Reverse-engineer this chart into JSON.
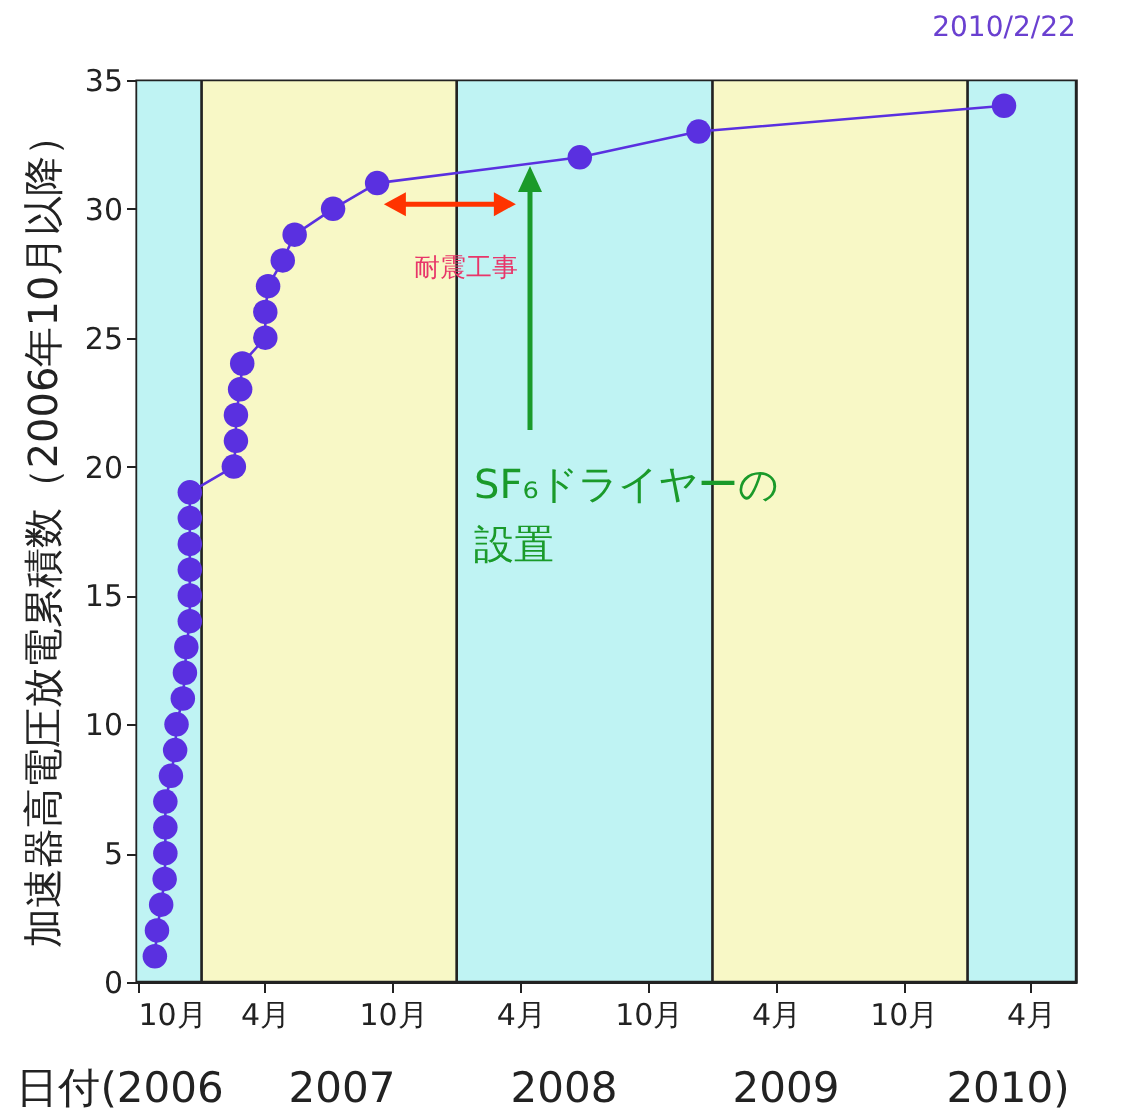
{
  "chart_data": {
    "type": "line",
    "ylabel": "加速器高電圧放電累積数（2006年10月以降）",
    "xlabel": "日付(2006 2007 2008 2009 2010)",
    "x": [
      "2006-10-26",
      "2006-10-29",
      "2006-11-04",
      "2006-11-09",
      "2006-11-10",
      "2006-11-10",
      "2006-11-10",
      "2006-11-18",
      "2006-11-24",
      "2006-11-26",
      "2006-12-05",
      "2006-12-08",
      "2006-12-10",
      "2006-12-15",
      "2006-12-15",
      "2006-12-15",
      "2006-12-15",
      "2006-12-15",
      "2006-12-15",
      "2007-02-16",
      "2007-02-19",
      "2007-02-19",
      "2007-02-25",
      "2007-02-28",
      "2007-04-02",
      "2007-04-02",
      "2007-04-06",
      "2007-04-27",
      "2007-05-14",
      "2007-07-08",
      "2007-09-09",
      "2008-06-25",
      "2008-12-12",
      "2010-02-22"
    ],
    "series": [
      {
        "color": "#5a30e0",
        "values": [
          1,
          2,
          3,
          4,
          5,
          6,
          7,
          8,
          9,
          10,
          11,
          12,
          13,
          14,
          15,
          16,
          17,
          18,
          19,
          20,
          21,
          22,
          23,
          24,
          25,
          26,
          27,
          28,
          29,
          30,
          31,
          32,
          33,
          34
        ]
      }
    ],
    "xlim": [
      "2006-09-29",
      "2010-06-05"
    ],
    "ylim": [
      0,
      35
    ],
    "yticks": [
      0,
      5,
      10,
      15,
      20,
      25,
      30,
      35
    ],
    "xticks": [
      {
        "value": "2006-10-01",
        "label": "10月"
      },
      {
        "value": "2007-04-01",
        "label": "4月"
      },
      {
        "value": "2007-10-01",
        "label": "10月"
      },
      {
        "value": "2008-04-01",
        "label": "4月"
      },
      {
        "value": "2008-10-01",
        "label": "10月"
      },
      {
        "value": "2009-04-01",
        "label": "4月"
      },
      {
        "value": "2009-10-01",
        "label": "10月"
      },
      {
        "value": "2010-04-01",
        "label": "4月"
      }
    ],
    "marker": "circle",
    "bands": [
      {
        "axis": "x",
        "from": "2006-09-29",
        "to": "2007-01-01",
        "color": "#bff3f3"
      },
      {
        "axis": "x",
        "from": "2007-01-01",
        "to": "2008-01-01",
        "color": "#f8f8c6"
      },
      {
        "axis": "x",
        "from": "2008-01-01",
        "to": "2009-01-01",
        "color": "#bff3f3"
      },
      {
        "axis": "x",
        "from": "2009-01-01",
        "to": "2010-01-01",
        "color": "#f8f8c6"
      },
      {
        "axis": "x",
        "from": "2010-01-01",
        "to": "2010-06-05",
        "color": "#bff3f3"
      }
    ],
    "annotations": [
      {
        "text": "2010/2/22",
        "x": "2010-02-22",
        "y": 34
      },
      {
        "text": "耐震工事",
        "x": "2008-01-14",
        "y": 27.7
      },
      "SF₆ドライヤーの設置"
    ]
  }
}
